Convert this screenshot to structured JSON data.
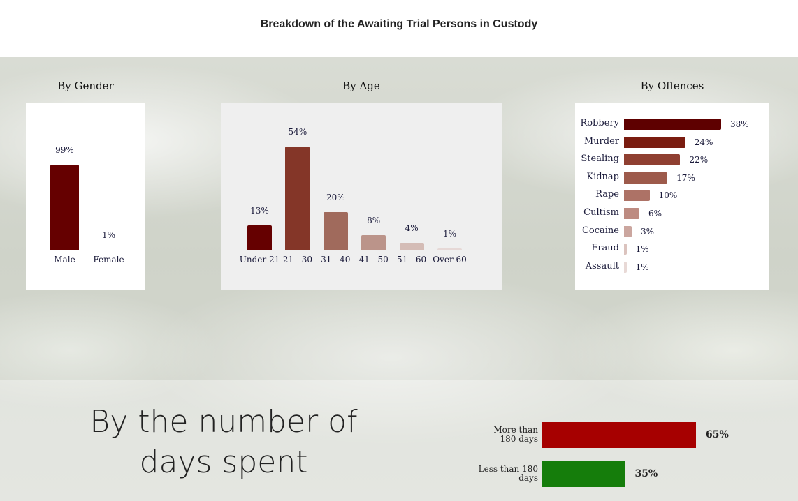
{
  "page": {
    "title": "Breakdown of the Awaiting Trial Persons in Custody"
  },
  "chart_data": [
    {
      "type": "bar",
      "title": "By Gender",
      "categories": [
        "Male",
        "Female"
      ],
      "values": [
        99,
        1
      ],
      "labels": [
        "99%",
        "1%"
      ],
      "colors": [
        "#650000",
        "#8a6a55"
      ],
      "ylim": [
        0,
        100
      ]
    },
    {
      "type": "bar",
      "title": "By Age",
      "categories": [
        "Under 21",
        "21 - 30",
        "31 - 40",
        "41 - 50",
        "51 - 60",
        "Over 60"
      ],
      "values": [
        13,
        54,
        20,
        8,
        4,
        1
      ],
      "labels": [
        "13%",
        "54%",
        "20%",
        "8%",
        "4%",
        "1%"
      ],
      "colors": [
        "#650000",
        "#843628",
        "#a06a5c",
        "#bb948a",
        "#d4bcb6",
        "#e6d8d6"
      ],
      "ylim": [
        0,
        54
      ]
    },
    {
      "type": "bar",
      "orientation": "horizontal",
      "title": "By Offences",
      "categories": [
        "Robbery",
        "Murder",
        "Stealing",
        "Kidnap",
        "Rape",
        "Cultism",
        "Cocaine",
        "Fraud",
        "Assault"
      ],
      "values": [
        38,
        24,
        22,
        17,
        10,
        6,
        3,
        1,
        1
      ],
      "labels": [
        "38%",
        "24%",
        "22%",
        "17%",
        "10%",
        "6%",
        "3%",
        "1%",
        "1%"
      ],
      "colors": [
        "#5e0000",
        "#7a1c10",
        "#8f3f31",
        "#9d5a4b",
        "#ad7266",
        "#bd8b81",
        "#cba69f",
        "#dbc3be",
        "#e8d9d6"
      ],
      "xlim": [
        0,
        38
      ]
    },
    {
      "type": "bar",
      "orientation": "horizontal",
      "title": "By the number of days spent",
      "categories": [
        "More than 180 days",
        "Less than 180 days"
      ],
      "values": [
        65,
        35
      ],
      "labels": [
        "65%",
        "35%"
      ],
      "colors": [
        "#a60000",
        "#157d0b"
      ],
      "xlim": [
        0,
        65
      ]
    }
  ]
}
